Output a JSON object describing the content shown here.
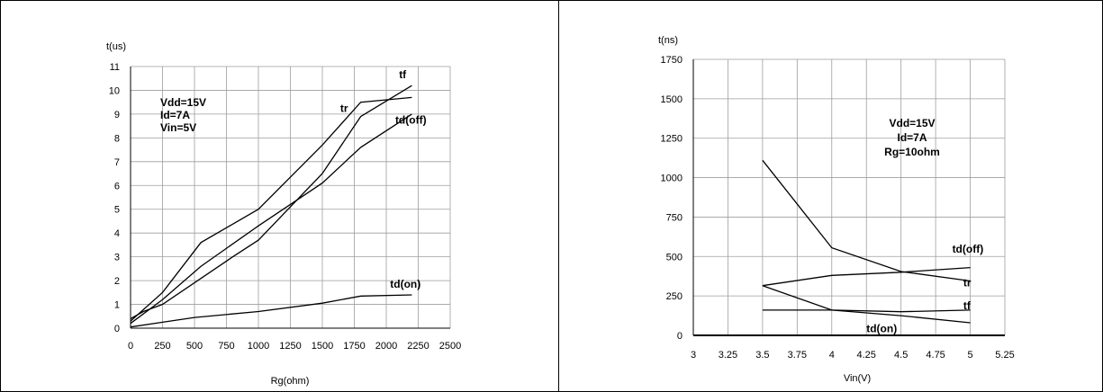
{
  "chart_data": [
    {
      "type": "line",
      "ylabel": "t(us)",
      "xlabel": "Rg(ohm)",
      "xlim": [
        0,
        2500
      ],
      "ylim": [
        0,
        11
      ],
      "x_ticks": [
        0,
        250,
        500,
        750,
        1000,
        1250,
        1500,
        1750,
        2000,
        2250,
        2500
      ],
      "y_ticks": [
        0,
        1,
        2,
        3,
        4,
        5,
        6,
        7,
        8,
        9,
        10,
        11
      ],
      "grid": true,
      "annotation": [
        "Vdd=15V",
        "Id=7A",
        "Vin=5V"
      ],
      "series": [
        {
          "name": "tf",
          "x": [
            0,
            250,
            550,
            1000,
            1500,
            1800,
            2200
          ],
          "y": [
            0.3,
            1.5,
            3.6,
            5.0,
            7.7,
            9.5,
            9.7
          ]
        },
        {
          "name": "tr",
          "x": [
            0,
            250,
            550,
            1000,
            1500,
            1800,
            2200
          ],
          "y": [
            0.2,
            1.2,
            2.6,
            4.3,
            6.1,
            7.6,
            9.0
          ]
        },
        {
          "name": "td(off)",
          "x": [
            0,
            100,
            250,
            800,
            1000,
            1500,
            1800,
            2200
          ],
          "y": [
            0.4,
            0.7,
            1.0,
            3.0,
            3.7,
            6.5,
            8.9,
            10.2
          ]
        },
        {
          "name": "td(on)",
          "x": [
            0,
            250,
            500,
            1000,
            1500,
            1800,
            2200
          ],
          "y": [
            0.05,
            0.25,
            0.45,
            0.7,
            1.05,
            1.35,
            1.4
          ]
        }
      ],
      "series_labels": [
        {
          "text": "tf",
          "x": 2100,
          "y": 10.5
        },
        {
          "text": "tr",
          "x": 1640,
          "y": 9.1
        },
        {
          "text": "td(off)",
          "x": 2070,
          "y": 8.6
        },
        {
          "text": "td(on)",
          "x": 2030,
          "y": 1.7
        }
      ]
    },
    {
      "type": "line",
      "ylabel": "t(ns)",
      "xlabel": "Vin(V)",
      "xlim": [
        3,
        5.25
      ],
      "ylim": [
        0,
        1750
      ],
      "x_ticks": [
        3,
        3.25,
        3.5,
        3.75,
        4,
        4.25,
        4.5,
        4.75,
        5,
        5.25
      ],
      "y_ticks": [
        0,
        250,
        500,
        750,
        1000,
        1250,
        1500,
        1750
      ],
      "grid": true,
      "annotation": [
        "Vdd=15V",
        "Id=7A",
        "Rg=10ohm"
      ],
      "series": [
        {
          "name": "td(off)",
          "x": [
            3.5,
            4.0,
            4.5,
            5.0
          ],
          "y": [
            1110,
            555,
            405,
            345
          ]
        },
        {
          "name": "tr",
          "x": [
            3.5,
            4.0,
            4.5,
            5.0
          ],
          "y": [
            315,
            380,
            400,
            430
          ]
        },
        {
          "name": "tf",
          "x": [
            3.5,
            4.0,
            4.5,
            5.0
          ],
          "y": [
            315,
            160,
            125,
            80
          ]
        },
        {
          "name": "td(on)",
          "x": [
            3.5,
            4.0,
            4.5,
            5.0
          ],
          "y": [
            160,
            160,
            150,
            160
          ]
        }
      ],
      "series_labels": [
        {
          "text": "td(off)",
          "x": 4.87,
          "y": 525
        },
        {
          "text": "tr",
          "x": 4.95,
          "y": 310
        },
        {
          "text": "tf",
          "x": 4.95,
          "y": 165
        },
        {
          "text": "td(on)",
          "x": 4.25,
          "y": 20
        }
      ]
    }
  ]
}
